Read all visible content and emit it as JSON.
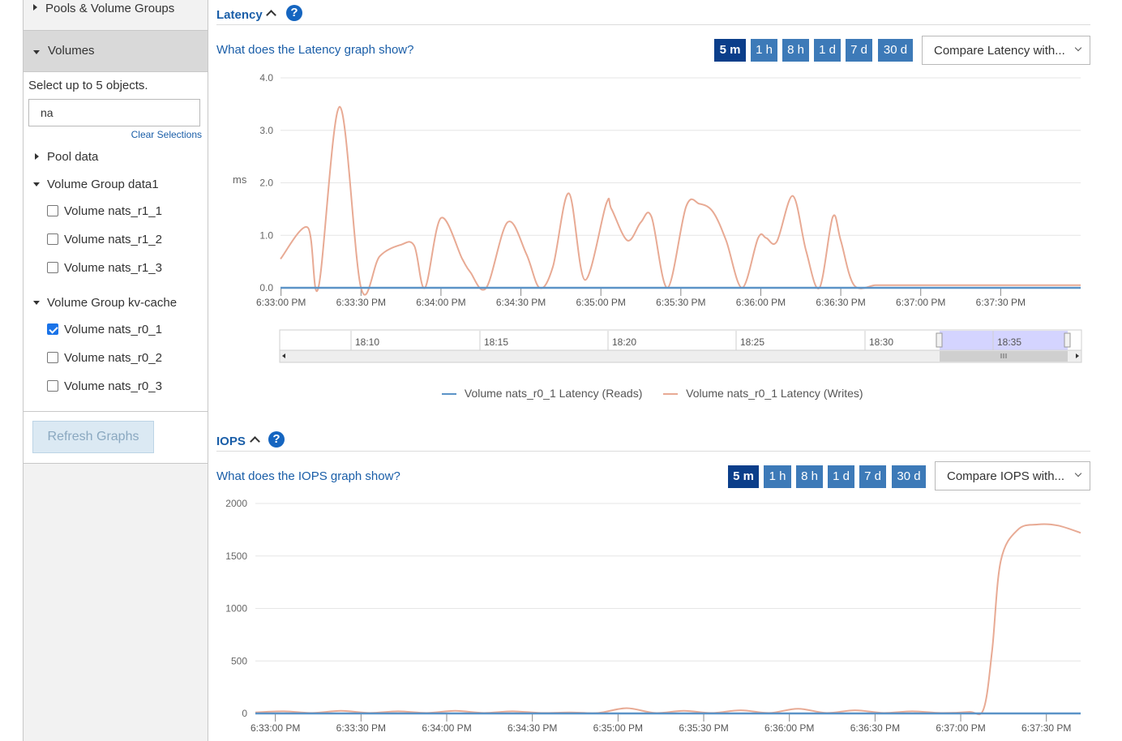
{
  "sidebar": {
    "pools_label": "Pools & Volume Groups",
    "volumes_label": "Volumes",
    "select_hint": "Select up to 5 objects.",
    "search_value": "na",
    "clear_label": "Clear Selections",
    "pool_data_label": "Pool data",
    "group1": {
      "label": "Volume Group data1",
      "items": [
        {
          "label": "Volume nats_r1_1",
          "checked": false
        },
        {
          "label": "Volume nats_r1_2",
          "checked": false
        },
        {
          "label": "Volume nats_r1_3",
          "checked": false
        }
      ]
    },
    "group2": {
      "label": "Volume Group kv-cache",
      "items": [
        {
          "label": "Volume nats_r0_1",
          "checked": true
        },
        {
          "label": "Volume nats_r0_2",
          "checked": false
        },
        {
          "label": "Volume nats_r0_3",
          "checked": false
        }
      ]
    },
    "refresh_label": "Refresh Graphs"
  },
  "latency": {
    "title": "Latency",
    "help_glyph": "?",
    "what_link": "What does the Latency graph show?",
    "ranges": [
      "5 m",
      "1 h",
      "8 h",
      "1 d",
      "7 d",
      "30 d"
    ],
    "active_range": "5 m",
    "compare_label": "Compare Latency with...",
    "navigator_labels": [
      "18:10",
      "18:15",
      "18:20",
      "18:25",
      "18:30",
      "18:35"
    ],
    "navigator_selected_window": [
      "18:33",
      "18:38"
    ],
    "legend": [
      {
        "name": "Volume nats_r0_1 Latency (Reads)",
        "color": "#5b93c7"
      },
      {
        "name": "Volume nats_r0_1 Latency (Writes)",
        "color": "#e8aa94"
      }
    ]
  },
  "iops": {
    "title": "IOPS",
    "help_glyph": "?",
    "what_link": "What does the IOPS graph show?",
    "ranges": [
      "5 m",
      "1 h",
      "8 h",
      "1 d",
      "7 d",
      "30 d"
    ],
    "active_range": "5 m",
    "compare_label": "Compare IOPS with..."
  },
  "chart_data": [
    {
      "type": "line",
      "ylabel": "ms",
      "ylim": [
        0,
        4
      ],
      "yticks": [
        "0.0",
        "1.0",
        "2.0",
        "3.0",
        "4.0"
      ],
      "xticks": [
        "6:33:00 PM",
        "6:33:30 PM",
        "6:34:00 PM",
        "6:34:30 PM",
        "6:35:00 PM",
        "6:35:30 PM",
        "6:36:00 PM",
        "6:36:30 PM",
        "6:37:00 PM",
        "6:37:30 PM"
      ],
      "xlim": [
        -0.2,
        300
      ],
      "grid": true,
      "legend_position": "bottom",
      "series": [
        {
          "name": "Volume nats_r0_1 Latency (Reads)",
          "color": "#5b93c7",
          "x": [
            -0.2,
            300
          ],
          "y": [
            0,
            0
          ]
        },
        {
          "name": "Volume nats_r0_1 Latency (Writes)",
          "color": "#e8aa94",
          "x": [
            -0.2,
            10,
            14,
            22,
            30,
            37,
            45,
            50,
            54,
            60,
            68,
            71,
            77,
            85,
            92,
            97,
            102,
            108,
            114,
            122,
            124,
            130,
            135,
            139,
            145,
            152,
            157,
            162,
            167,
            173,
            179,
            182,
            186,
            192,
            197,
            202,
            207,
            210,
            215,
            223,
            229,
            234,
            240,
            248,
            253,
            260,
            265,
            269,
            271,
            300
          ],
          "y": [
            0.55,
            1.15,
            0,
            3.45,
            0,
            0.6,
            0.82,
            0.8,
            0,
            1.33,
            0.55,
            0.3,
            0,
            1.25,
            0.65,
            0,
            0.4,
            1.8,
            0.15,
            1.6,
            1.5,
            0.9,
            1.25,
            1.35,
            0,
            1.55,
            1.6,
            1.45,
            0.9,
            0,
            0.95,
            0.95,
            0.88,
            1.75,
            0.7,
            0,
            1.35,
            0.9,
            0.05,
            0.05,
            0.05,
            0.05,
            0.05,
            0.05,
            0.05,
            0.05,
            0.05,
            0.05,
            0.05,
            0.05
          ]
        }
      ]
    },
    {
      "type": "line",
      "ylim": [
        0,
        2000
      ],
      "yticks": [
        "0",
        "500",
        "1000",
        "1500",
        "2000"
      ],
      "xticks": [
        "6:33:00 PM",
        "6:33:30 PM",
        "6:34:00 PM",
        "6:34:30 PM",
        "6:35:00 PM",
        "6:35:30 PM",
        "6:36:00 PM",
        "6:36:30 PM",
        "6:37:00 PM",
        "6:37:30 PM"
      ],
      "xlim": [
        -7,
        282
      ],
      "grid": true,
      "series": [
        {
          "name": "Volume nats_r0_1 Latency (Reads)",
          "color": "#5b93c7",
          "x": [
            -7,
            282
          ],
          "y": [
            0,
            0
          ]
        },
        {
          "name": "Volume nats_r0_1 Latency (Writes)",
          "color": "#e8aa94",
          "x": [
            -7,
            3,
            13,
            23,
            33,
            43,
            53,
            63,
            73,
            83,
            93,
            103,
            113,
            123,
            133,
            143,
            153,
            163,
            173,
            183,
            193,
            203,
            213,
            223,
            233,
            243,
            248,
            251,
            254,
            260,
            267,
            274,
            282
          ],
          "y": [
            10,
            20,
            5,
            25,
            5,
            20,
            5,
            25,
            5,
            20,
            5,
            10,
            5,
            50,
            5,
            25,
            5,
            30,
            5,
            45,
            5,
            30,
            5,
            20,
            5,
            15,
            40,
            600,
            1450,
            1750,
            1800,
            1790,
            1720
          ]
        }
      ]
    }
  ]
}
